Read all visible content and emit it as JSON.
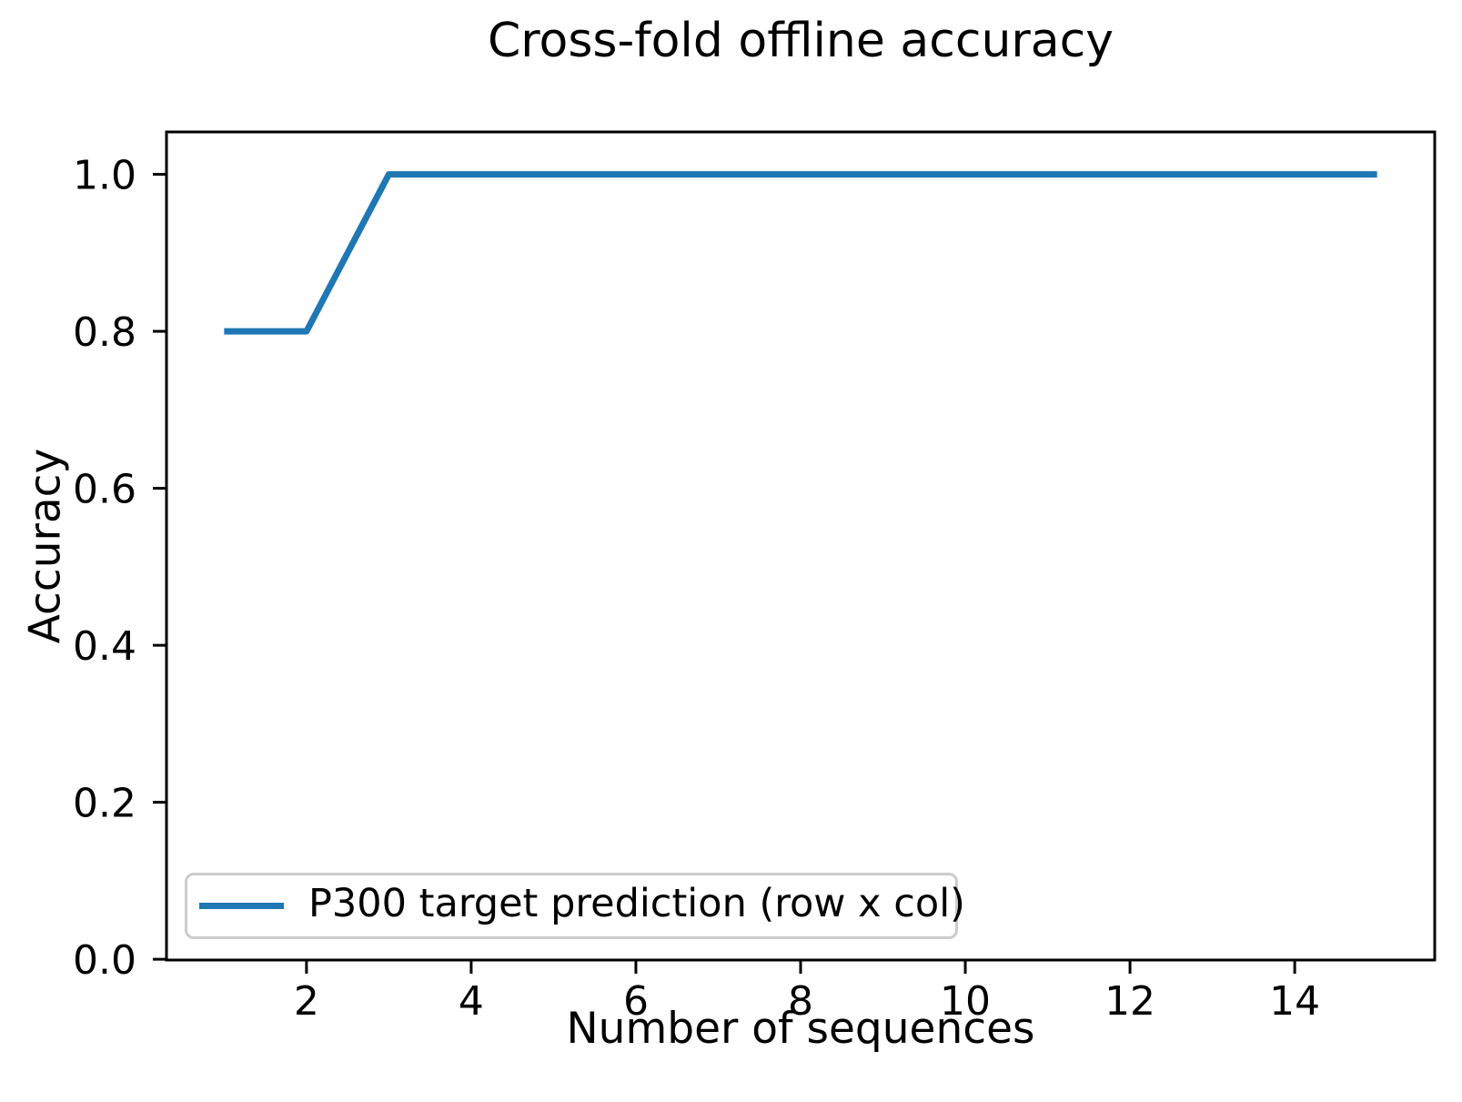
{
  "figure": {
    "background": "#ffffff"
  },
  "chart_data": {
    "type": "line",
    "title": "Cross-fold offline accuracy",
    "xlabel": "Number of sequences",
    "ylabel": "Accuracy",
    "series": [
      {
        "name": "P300 target prediction (row x col)",
        "color": "#1f77b4",
        "x": [
          1,
          2,
          3,
          4,
          5,
          6,
          7,
          8,
          9,
          10,
          11,
          12,
          13,
          14,
          15
        ],
        "y": [
          0.8,
          0.8,
          1.0,
          1.0,
          1.0,
          1.0,
          1.0,
          1.0,
          1.0,
          1.0,
          1.0,
          1.0,
          1.0,
          1.0,
          1.0
        ]
      }
    ],
    "xlim": [
      0.3,
      15.7
    ],
    "ylim": [
      -0.001,
      1.054
    ],
    "xticks": [
      2,
      4,
      6,
      8,
      10,
      12,
      14
    ],
    "xtick_labels": [
      "2",
      "4",
      "6",
      "8",
      "10",
      "12",
      "14"
    ],
    "yticks": [
      0.0,
      0.2,
      0.4,
      0.6,
      0.8,
      1.0
    ],
    "ytick_labels": [
      "0.0",
      "0.2",
      "0.4",
      "0.6",
      "0.8",
      "1.0"
    ],
    "grid": false,
    "legend": {
      "position": "lower left",
      "entries": [
        "P300 target prediction (row x col)"
      ]
    },
    "axis_color": "#000000",
    "legend_border_color": "#cccccc"
  }
}
